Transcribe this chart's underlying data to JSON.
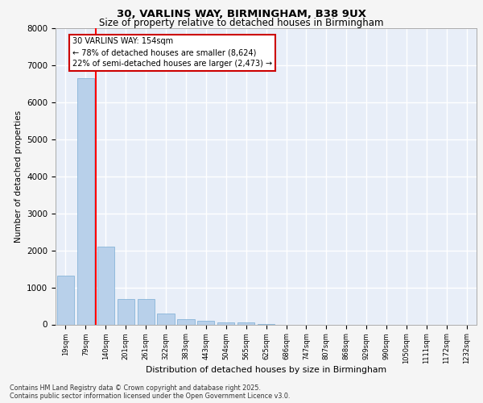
{
  "title_line1": "30, VARLINS WAY, BIRMINGHAM, B38 9UX",
  "title_line2": "Size of property relative to detached houses in Birmingham",
  "xlabel": "Distribution of detached houses by size in Birmingham",
  "ylabel": "Number of detached properties",
  "categories": [
    "19sqm",
    "79sqm",
    "140sqm",
    "201sqm",
    "261sqm",
    "322sqm",
    "383sqm",
    "443sqm",
    "504sqm",
    "565sqm",
    "625sqm",
    "686sqm",
    "747sqm",
    "807sqm",
    "868sqm",
    "929sqm",
    "990sqm",
    "1050sqm",
    "1111sqm",
    "1172sqm",
    "1232sqm"
  ],
  "values": [
    1320,
    6650,
    2100,
    680,
    680,
    290,
    140,
    90,
    55,
    55,
    20,
    0,
    0,
    0,
    0,
    0,
    0,
    0,
    0,
    0,
    0
  ],
  "bar_color": "#b8d0ea",
  "bar_edge_color": "#7aadd4",
  "annotation_title": "30 VARLINS WAY: 154sqm",
  "annotation_line2": "← 78% of detached houses are smaller (8,624)",
  "annotation_line3": "22% of semi-detached houses are larger (2,473) →",
  "annotation_box_edgecolor": "#cc0000",
  "ylim": [
    0,
    8000
  ],
  "yticks": [
    0,
    1000,
    2000,
    3000,
    4000,
    5000,
    6000,
    7000,
    8000
  ],
  "background_color": "#e8eef8",
  "grid_color": "#ffffff",
  "fig_facecolor": "#f5f5f5",
  "footer_line1": "Contains HM Land Registry data © Crown copyright and database right 2025.",
  "footer_line2": "Contains public sector information licensed under the Open Government Licence v3.0."
}
